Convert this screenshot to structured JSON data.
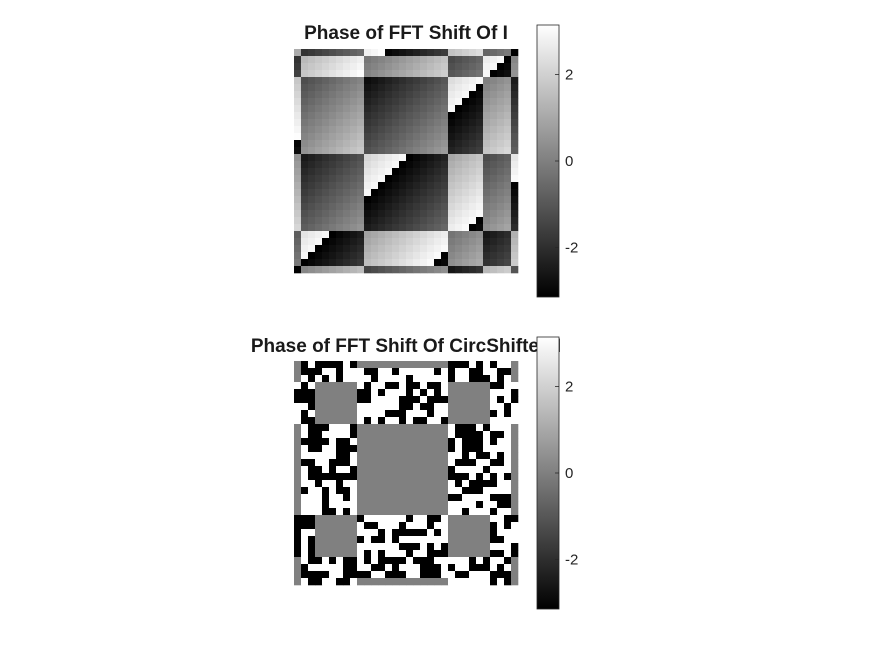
{
  "chart_data": [
    {
      "type": "heatmap",
      "title": "Phase of FFT Shift Of I",
      "colormap": "gray",
      "clim": [
        -3.1416,
        3.1416
      ],
      "colorbar": {
        "ticks": [
          2,
          0,
          -2
        ],
        "tick_labels": [
          "2",
          "0",
          "-2"
        ]
      },
      "grid": false,
      "rows": 32,
      "cols": 32,
      "pattern": "piecewise linear phase ramps, block boundaries at columns 0,3,9,22,29,31 and rows 0,3,16,22,29,31"
    },
    {
      "type": "heatmap",
      "title": "Phase of FFT Shift Of CircShifted I",
      "colormap": "gray",
      "clim": [
        -3.1416,
        3.1416
      ],
      "colorbar": {
        "ticks": [
          2,
          0,
          -2
        ],
        "tick_labels": [
          "2",
          "0",
          "-2"
        ]
      },
      "grid": false,
      "rows": 32,
      "cols": 32,
      "pattern": "gray (0) blocks alternating with noisy ±π blocks"
    }
  ]
}
